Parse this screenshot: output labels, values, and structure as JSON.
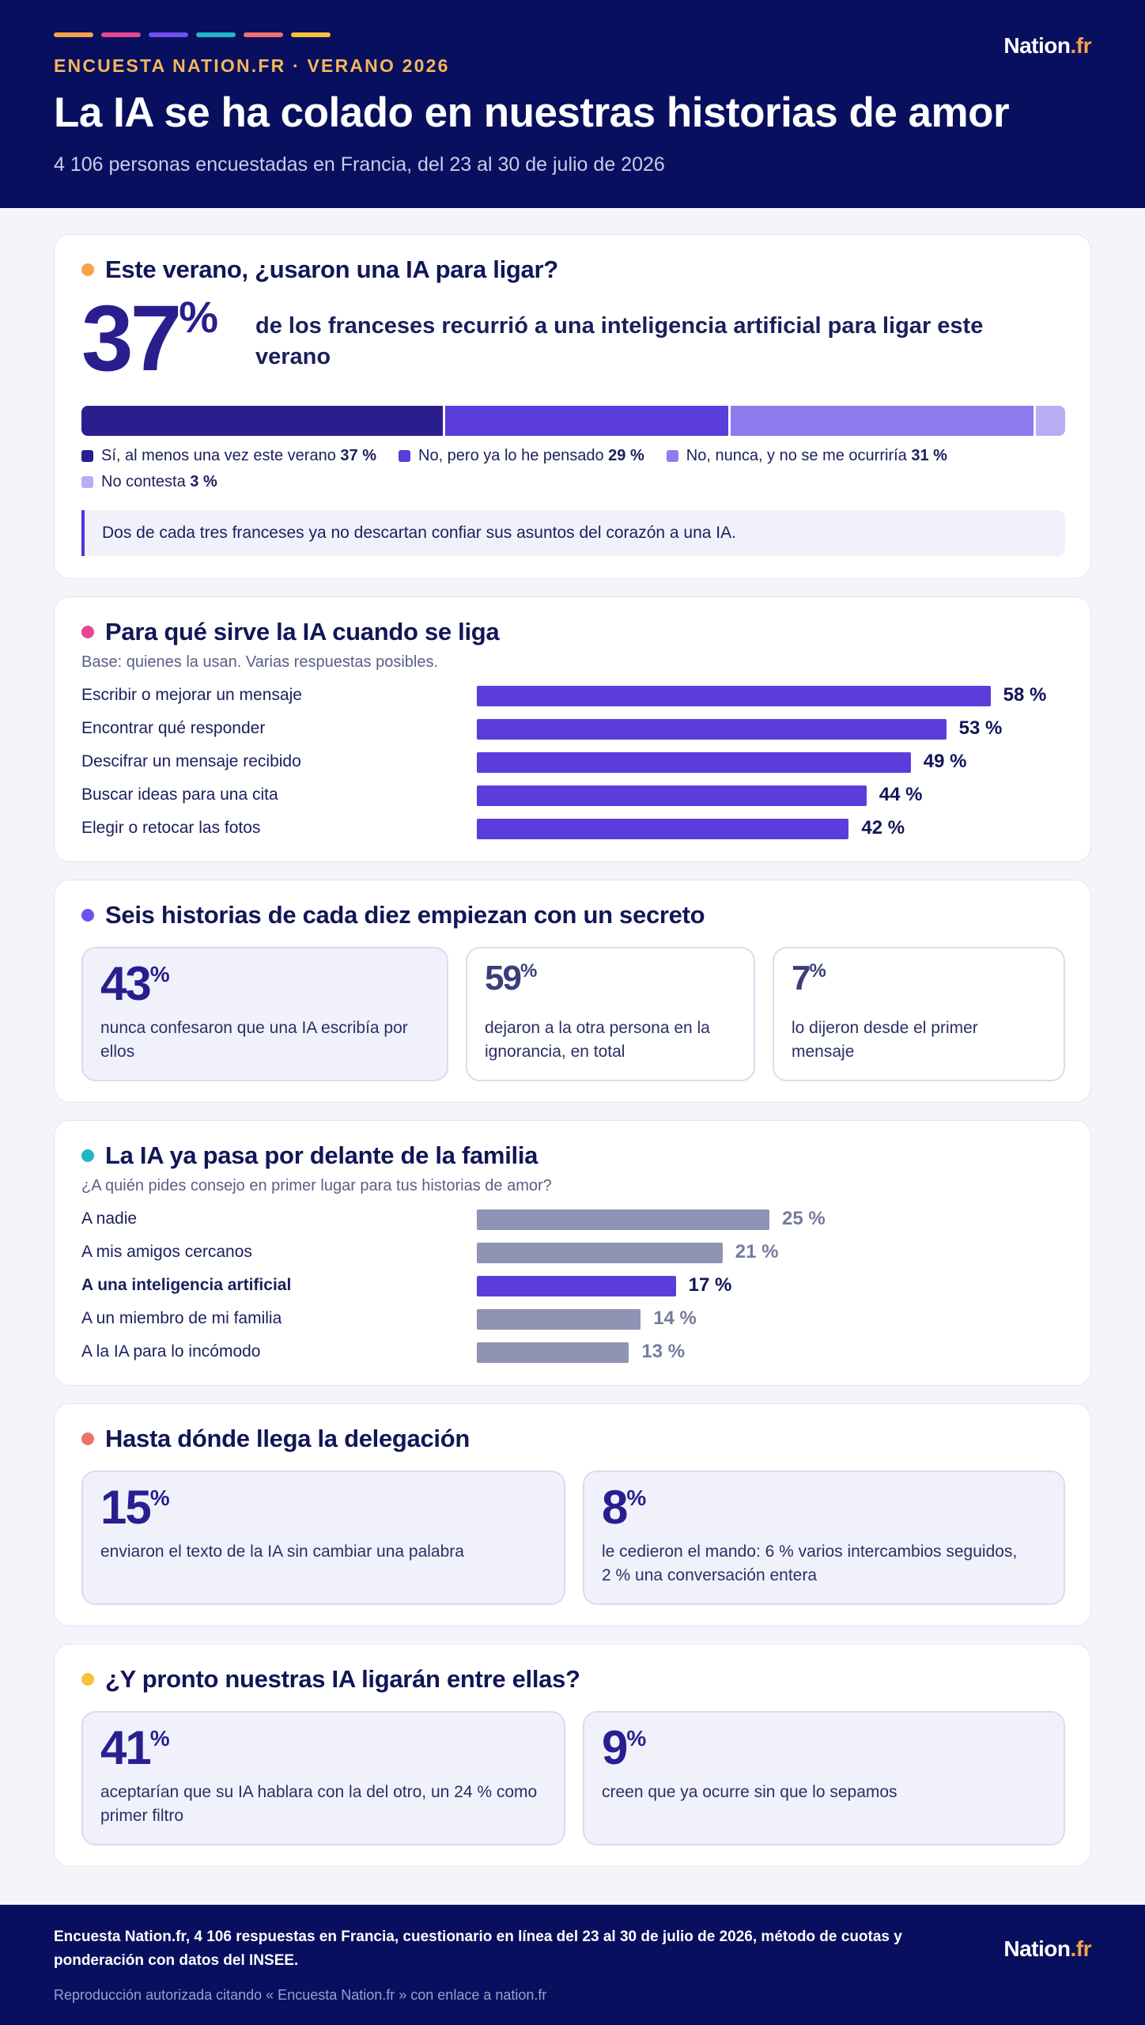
{
  "header": {
    "stripe_colors": [
      "#f5a24a",
      "#e5488f",
      "#6e4ff0",
      "#22b7c8",
      "#f06f6f",
      "#f7c23a"
    ],
    "kicker": "ENCUESTA NATION.FR · VERANO 2026",
    "title": "La IA se ha colado en nuestras historias de amor",
    "subtitle": "4 106 personas encuestadas en Francia, del 23 al 30 de julio de 2026",
    "logo_main": "Nation",
    "logo_suffix": ".fr"
  },
  "section1": {
    "dot_color": "#f5a24a",
    "title": "Este verano, ¿usaron una IA para ligar?",
    "big_number": "37",
    "big_unit": "%",
    "lead": "de los franceses recurrió a una inteligencia artificial para ligar este verano",
    "legend": [
      {
        "label": "Sí, al menos una vez este verano",
        "value": "37 %",
        "color": "#2a1e8f"
      },
      {
        "label": "No, pero ya lo he pensado",
        "value": "29 %",
        "color": "#5b3ddb"
      },
      {
        "label": "No, nunca, y no se me ocurriría",
        "value": "31 %",
        "color": "#8e7bee"
      },
      {
        "label": "No contesta",
        "value": "3 %",
        "color": "#b9adf6"
      }
    ],
    "note": "Dos de cada tres franceses ya no descartan confiar sus asuntos del corazón a una IA."
  },
  "section2": {
    "dot_color": "#e5488f",
    "title": "Para qué sirve la IA cuando se liga",
    "subtitle": "Base: quienes la usan. Varias respuestas posibles."
  },
  "section3": {
    "dot_color": "#6e4ff0",
    "title": "Seis historias de cada diez empiezan con un secreto",
    "stats": [
      {
        "number": "43",
        "unit": "%",
        "text": "nunca confesaron que una IA escribía por ellos"
      },
      {
        "number": "59",
        "unit": "%",
        "text": "dejaron a la otra persona en la ignorancia, en total"
      },
      {
        "number": "7",
        "unit": "%",
        "text": "lo dijeron desde el primer mensaje"
      }
    ]
  },
  "section4": {
    "dot_color": "#22b7c8",
    "title": "La IA ya pasa por delante de la familia",
    "subtitle": "¿A quién pides consejo en primer lugar para tus historias de amor?"
  },
  "section5": {
    "dot_color": "#f06f6f",
    "title": "Hasta dónde llega la delegación",
    "stats": [
      {
        "number": "15",
        "unit": "%",
        "text": "enviaron el texto de la IA sin cambiar una palabra"
      },
      {
        "number": "8",
        "unit": "%",
        "text": "le cedieron el mando: 6 % varios intercambios seguidos, 2 % una conversación entera"
      }
    ]
  },
  "section6": {
    "dot_color": "#f7c23a",
    "title": "¿Y pronto nuestras IA ligarán entre ellas?",
    "stats": [
      {
        "number": "41",
        "unit": "%",
        "text": "aceptarían que su IA hablara con la del otro, un 24 % como primer filtro"
      },
      {
        "number": "9",
        "unit": "%",
        "text": "creen que ya ocurre sin que lo sepamos"
      }
    ]
  },
  "footer": {
    "methodology": "Encuesta Nation.fr, 4 106 respuestas en Francia, cuestionario en línea del 23 al 30 de julio de 2026, método de cuotas y ponderación con datos del INSEE.",
    "reproduction": "Reproducción autorizada citando « Encuesta Nation.fr » con enlace a nation.fr"
  },
  "chart_data": [
    {
      "type": "bar",
      "orientation": "stacked-horizontal",
      "categories": [
        "Sí, al menos una vez este verano",
        "No, pero ya lo he pensado",
        "No, nunca, y no se me ocurriría",
        "No contesta"
      ],
      "values": [
        37,
        29,
        31,
        3
      ],
      "colors": [
        "#2a1e8f",
        "#5b3ddb",
        "#8e7bee",
        "#b9adf6"
      ],
      "legend": "bottom"
    },
    {
      "type": "bar",
      "orientation": "horizontal",
      "categories": [
        "Escribir o mejorar un mensaje",
        "Encontrar qué responder",
        "Descifrar un mensaje recibido",
        "Buscar ideas para una cita",
        "Elegir o retocar las fotos"
      ],
      "values": [
        58,
        53,
        49,
        44,
        42
      ],
      "labels": [
        "58 %",
        "53 %",
        "49 %",
        "44 %",
        "42 %"
      ],
      "color": "#5b3ddb"
    },
    {
      "type": "bar",
      "orientation": "horizontal",
      "categories": [
        "A nadie",
        "A mis amigos cercanos",
        "A una inteligencia artificial",
        "A un miembro de mi familia",
        "A la IA para lo incómodo"
      ],
      "values": [
        25,
        21,
        17,
        14,
        13
      ],
      "labels": [
        "25 %",
        "21 %",
        "17 %",
        "14 %",
        "13 %"
      ],
      "highlight_index": 2,
      "color": "#8f93b4",
      "highlight_color": "#5b3ddb"
    }
  ]
}
